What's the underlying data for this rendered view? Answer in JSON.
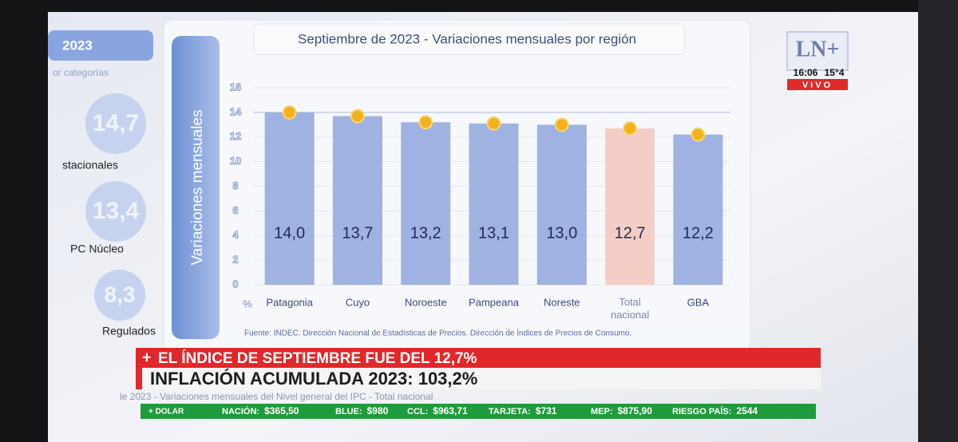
{
  "chart_data": {
    "type": "bar",
    "title": "Septiembre de 2023 - Variaciones mensuales por región",
    "y_label": "Variaciones mensuales",
    "unit": "%",
    "categories": [
      "Patagonia",
      "Cuyo",
      "Noroeste",
      "Pampeana",
      "Noreste",
      "Total nacional",
      "GBA"
    ],
    "values": [
      14.0,
      13.7,
      13.2,
      13.1,
      13.0,
      12.7,
      12.2
    ],
    "value_labels": [
      "14,0",
      "13,7",
      "13,2",
      "13,1",
      "13,0",
      "12,7",
      "12,2"
    ],
    "colors": [
      "#9fb2e2",
      "#9fb2e2",
      "#9fb2e2",
      "#9fb2e2",
      "#9fb2e2",
      "#f4cdc6",
      "#9fb2e2"
    ],
    "ylim": [
      0,
      16
    ],
    "yticks": [
      0,
      2,
      4,
      6,
      8,
      10,
      12,
      14,
      16
    ],
    "source": "Fuente: INDEC. Dirección Nacional de Estadísticas de Precios. Dirección de Índices de Precios de Consumo."
  },
  "side_panel": {
    "year": "2023",
    "subtitle": "or categorías",
    "items": [
      {
        "value": "14,7",
        "label": "stacionales"
      },
      {
        "value": "13,4",
        "label": "PC Núcleo"
      },
      {
        "value": "8,3",
        "label": "Regulados"
      }
    ]
  },
  "logo": {
    "text": "LN+",
    "time": "16:06",
    "temp": "15°4",
    "live": "VIVO"
  },
  "banner": {
    "headline": "EL ÍNDICE DE SEPTIEMBRE FUE DEL 12,7%",
    "main": "INFLACIÓN ACUMULADA 2023: 103,2%",
    "behind": "le 2023 - Variaciones mensuales del Nivel general del IPC - Total nacional"
  },
  "ticker": {
    "label": "+ DOLAR",
    "items": [
      {
        "name": "NACIÓN:",
        "value": "$365,50"
      },
      {
        "name": "BLUE:",
        "value": "$980"
      },
      {
        "name": "CCL:",
        "value": "$963,71"
      },
      {
        "name": "TARJETA:",
        "value": "$731"
      },
      {
        "name": "MEP:",
        "value": "$875,90"
      },
      {
        "name": "RIESGO PAÍS:",
        "value": "2544"
      }
    ]
  }
}
